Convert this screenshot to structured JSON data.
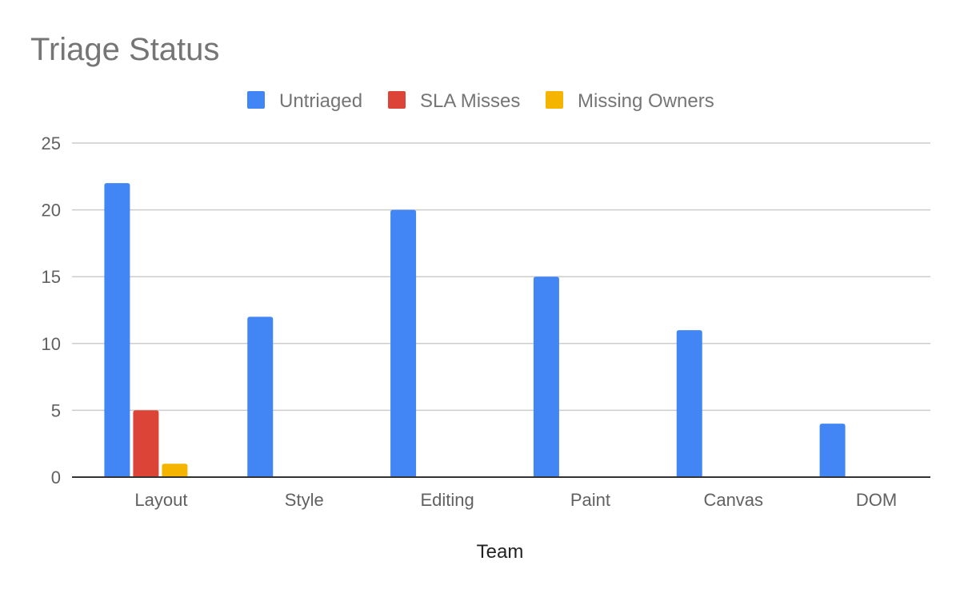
{
  "chart_data": {
    "type": "bar",
    "title": "Triage Status",
    "xlabel": "Team",
    "ylabel": "",
    "ylim": [
      0,
      25
    ],
    "yticks": [
      0,
      5,
      10,
      15,
      20,
      25
    ],
    "grid": true,
    "legend_position": "top",
    "categories": [
      "Layout",
      "Style",
      "Editing",
      "Paint",
      "Canvas",
      "DOM"
    ],
    "series": [
      {
        "name": "Untriaged",
        "color": "#4285F4",
        "values": [
          22,
          12,
          20,
          15,
          11,
          4
        ]
      },
      {
        "name": "SLA Misses",
        "color": "#DB4437",
        "values": [
          5,
          0,
          0,
          0,
          0,
          0
        ]
      },
      {
        "name": "Missing Owners",
        "color": "#F4B400",
        "values": [
          1,
          0,
          0,
          0,
          0,
          0
        ]
      }
    ]
  }
}
